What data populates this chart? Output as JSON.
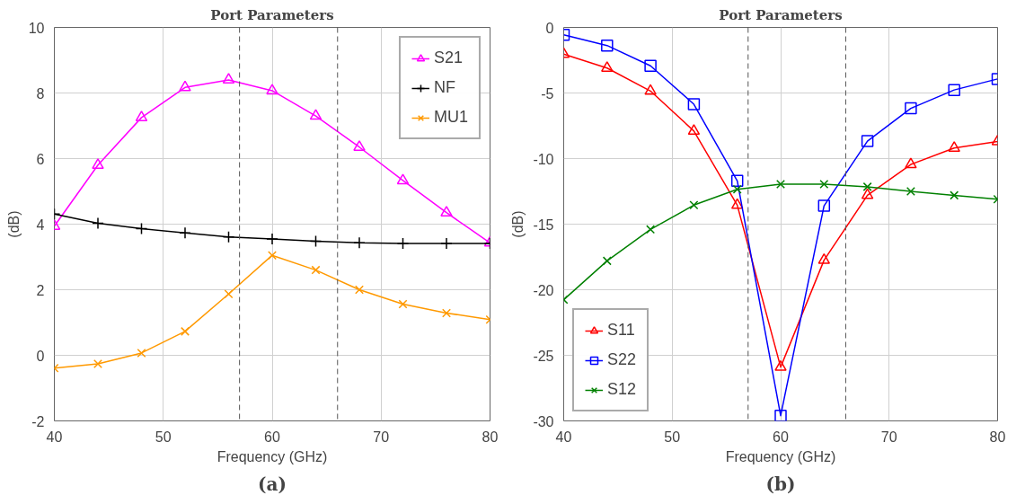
{
  "chart_data": [
    {
      "type": "line",
      "title": "Port Parameters",
      "xlabel": "Frequency (GHz)",
      "ylabel": "(dB)",
      "annotations": [
        "(a)"
      ],
      "x": [
        40,
        44,
        48,
        52,
        56,
        60,
        64,
        68,
        72,
        76,
        80
      ],
      "xlim": [
        40,
        80
      ],
      "xticks": [
        40,
        50,
        60,
        70,
        80
      ],
      "ylim": [
        -2,
        10
      ],
      "yticks": [
        -2,
        0,
        2,
        4,
        6,
        8,
        10
      ],
      "grid": true,
      "legend": "top right",
      "ref_lines": [
        {
          "axis": "x",
          "value": 57,
          "color": "#555555",
          "line_style": "dashed"
        },
        {
          "axis": "x",
          "value": 66,
          "color": "#555555",
          "line_style": "dashed"
        }
      ],
      "series": [
        {
          "name": "S21",
          "color": "#ff00ff",
          "marker": "triangle",
          "values": [
            3.94,
            5.8,
            7.25,
            8.17,
            8.4,
            8.07,
            7.3,
            6.35,
            5.33,
            4.35,
            3.43
          ]
        },
        {
          "name": "NF",
          "color": "#000000",
          "marker": "cross",
          "values": [
            4.31,
            4.03,
            3.86,
            3.73,
            3.61,
            3.55,
            3.48,
            3.43,
            3.41,
            3.41,
            3.41
          ]
        },
        {
          "name": "MU1",
          "color": "#ff9900",
          "marker": "x",
          "values": [
            -0.39,
            -0.26,
            0.07,
            0.73,
            1.87,
            3.05,
            2.6,
            2.0,
            1.56,
            1.29,
            1.09
          ]
        }
      ]
    },
    {
      "type": "line",
      "title": "Port Parameters",
      "xlabel": "Frequency (GHz)",
      "ylabel": "(dB)",
      "annotations": [
        "(b)"
      ],
      "x": [
        40,
        44,
        48,
        52,
        56,
        60,
        64,
        68,
        72,
        76,
        80
      ],
      "xlim": [
        40,
        80
      ],
      "xticks": [
        40,
        50,
        60,
        70,
        80
      ],
      "ylim": [
        -30,
        0
      ],
      "yticks": [
        -30,
        -25,
        -20,
        -15,
        -10,
        -5,
        0
      ],
      "grid": true,
      "legend": "bottom left",
      "ref_lines": [
        {
          "axis": "x",
          "value": 57,
          "color": "#555555",
          "line_style": "dashed"
        },
        {
          "axis": "x",
          "value": 66,
          "color": "#555555",
          "line_style": "dashed"
        }
      ],
      "series": [
        {
          "name": "S11",
          "color": "#ff0000",
          "marker": "triangle",
          "values": [
            -2.04,
            -3.1,
            -4.85,
            -7.9,
            -13.55,
            -25.9,
            -17.75,
            -12.8,
            -10.45,
            -9.2,
            -8.7
          ]
        },
        {
          "name": "S22",
          "color": "#0000ff",
          "marker": "square",
          "values": [
            -0.56,
            -1.38,
            -2.93,
            -5.86,
            -11.7,
            -29.6,
            -13.6,
            -8.67,
            -6.17,
            -4.77,
            -3.93
          ]
        },
        {
          "name": "S12",
          "color": "#008000",
          "marker": "x",
          "values": [
            -20.76,
            -17.8,
            -15.4,
            -13.55,
            -12.35,
            -11.95,
            -11.95,
            -12.15,
            -12.5,
            -12.8,
            -13.1
          ]
        }
      ]
    }
  ]
}
